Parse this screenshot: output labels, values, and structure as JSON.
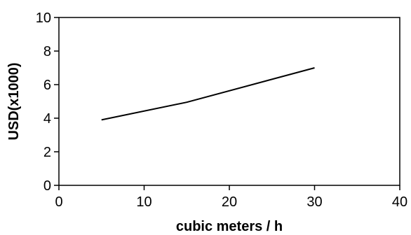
{
  "chart_data": {
    "type": "line",
    "title": "",
    "xlabel": "cubic meters / h",
    "ylabel": "USD(x1000)",
    "xlim": [
      0,
      40
    ],
    "ylim": [
      0,
      10
    ],
    "xticks": [
      0,
      10,
      20,
      30,
      40
    ],
    "yticks": [
      0,
      2,
      4,
      6,
      8,
      10
    ],
    "xtick_labels": [
      "0",
      "10",
      "20",
      "30",
      "40"
    ],
    "ytick_labels": [
      "0",
      "2",
      "4",
      "6",
      "8",
      "10"
    ],
    "grid": false,
    "legend": "none",
    "series": [
      {
        "color": "#000000",
        "x": [
          5,
          15,
          30
        ],
        "y": [
          3.9,
          4.95,
          7.0
        ]
      }
    ]
  }
}
